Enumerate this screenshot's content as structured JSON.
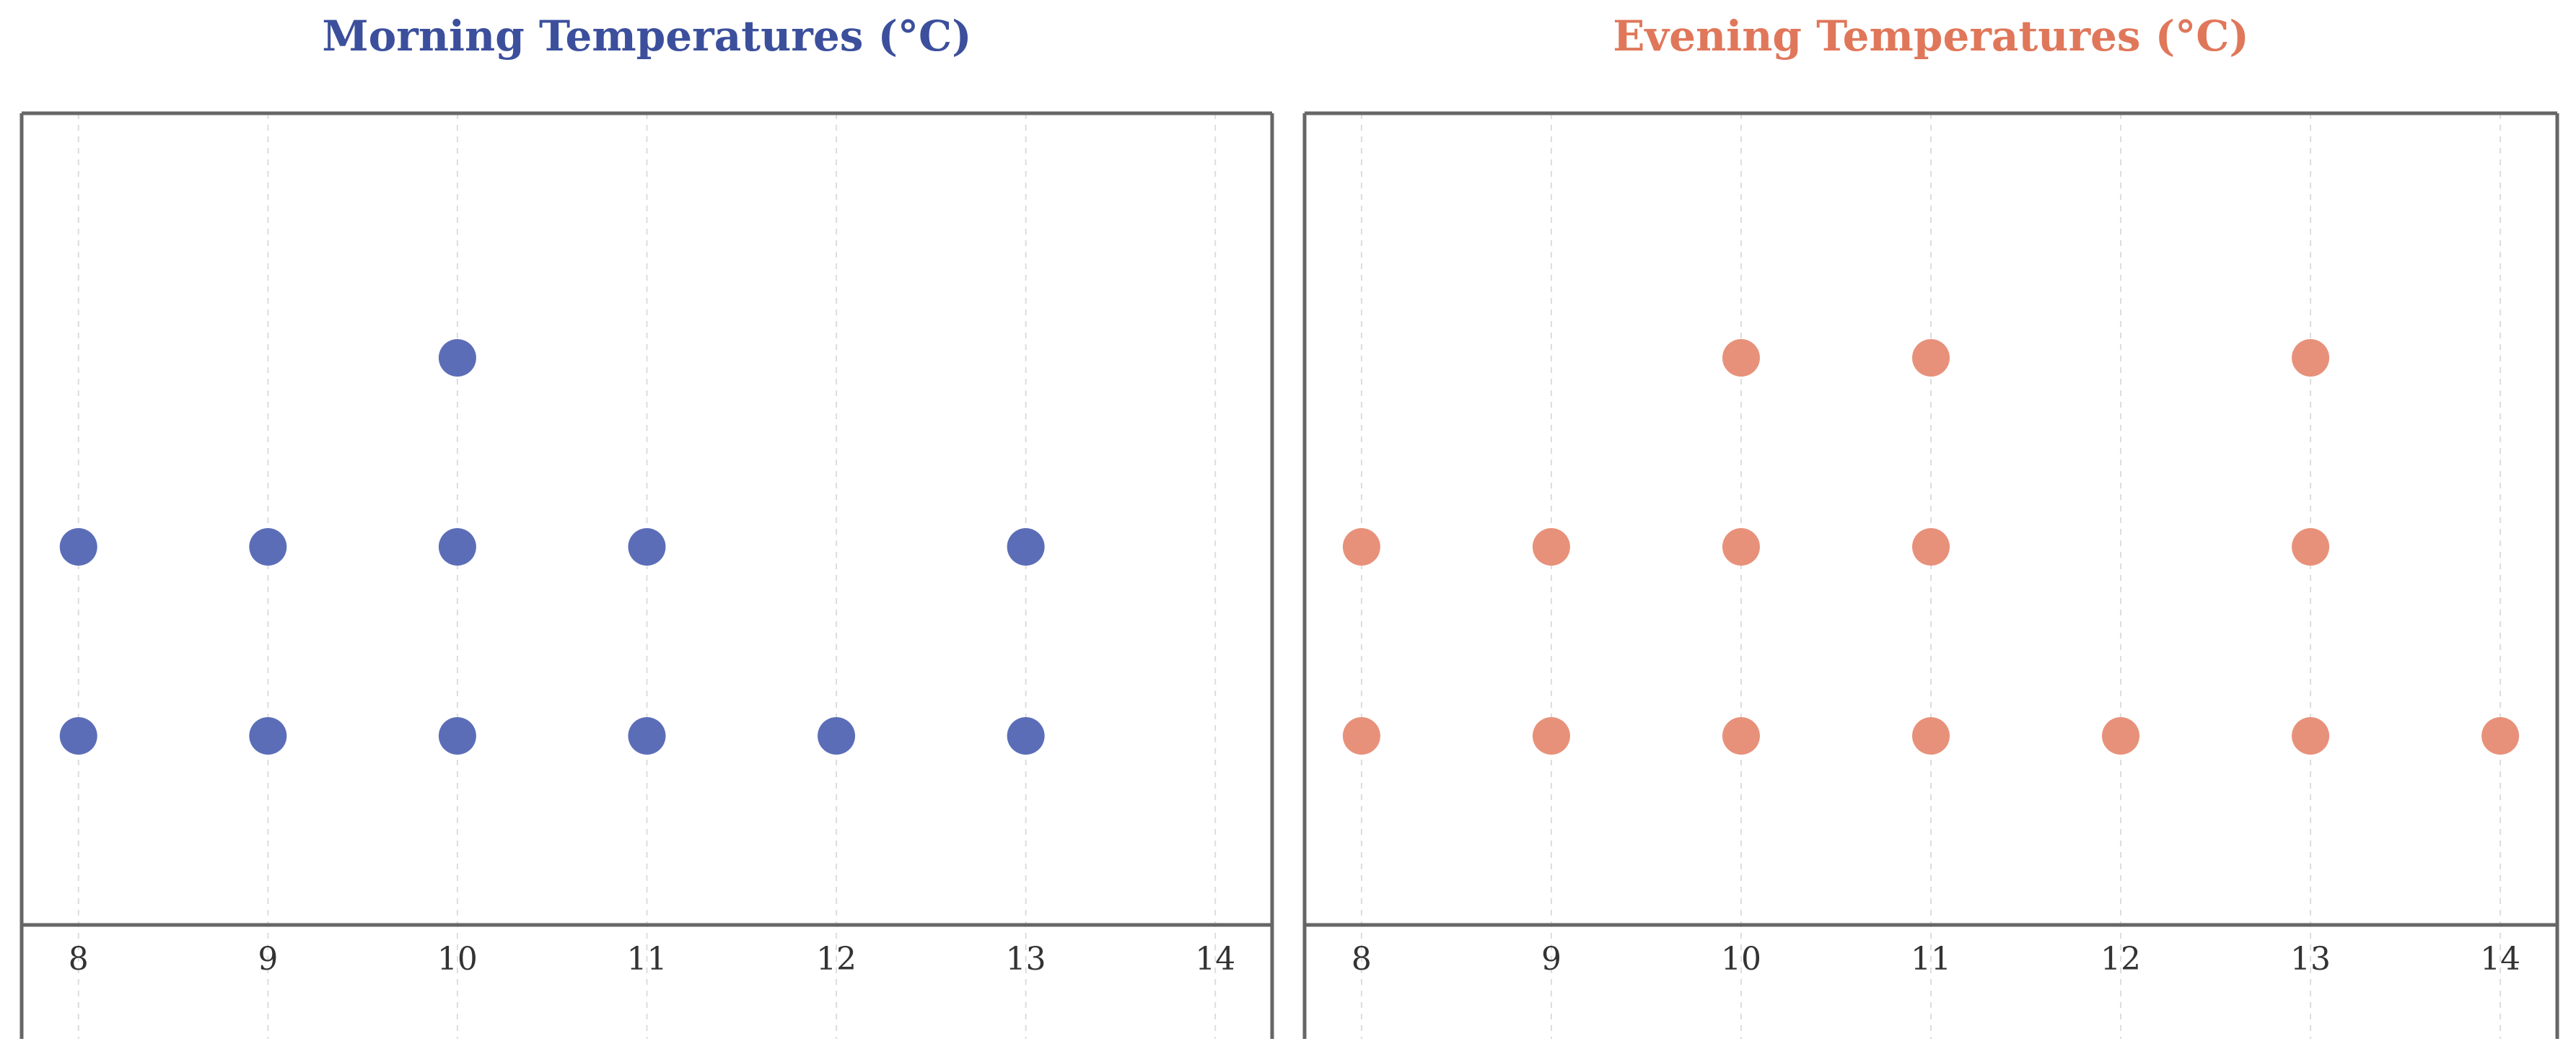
{
  "chart_data": [
    {
      "type": "dot",
      "title": "Morning Temperatures (°C)",
      "title_color": "#3b4f9c",
      "dot_color": "#5c6db8",
      "xticks": [
        8,
        9,
        10,
        11,
        12,
        13,
        14
      ],
      "xlim": [
        7.7,
        14.3
      ],
      "grid": "vertical dashed",
      "columns": [
        {
          "x": 8,
          "count": 2
        },
        {
          "x": 9,
          "count": 2
        },
        {
          "x": 10,
          "count": 3
        },
        {
          "x": 11,
          "count": 2
        },
        {
          "x": 12,
          "count": 1
        },
        {
          "x": 13,
          "count": 2
        }
      ]
    },
    {
      "type": "dot",
      "title": "Evening Temperatures (°C)",
      "title_color": "#e0775a",
      "dot_color": "#e8917a",
      "xticks": [
        8,
        9,
        10,
        11,
        12,
        13,
        14
      ],
      "xlim": [
        7.7,
        14.3
      ],
      "grid": "vertical dashed",
      "columns": [
        {
          "x": 8,
          "count": 2
        },
        {
          "x": 9,
          "count": 2
        },
        {
          "x": 10,
          "count": 3
        },
        {
          "x": 11,
          "count": 3
        },
        {
          "x": 12,
          "count": 1
        },
        {
          "x": 13,
          "count": 3
        },
        {
          "x": 14,
          "count": 1
        }
      ]
    }
  ]
}
